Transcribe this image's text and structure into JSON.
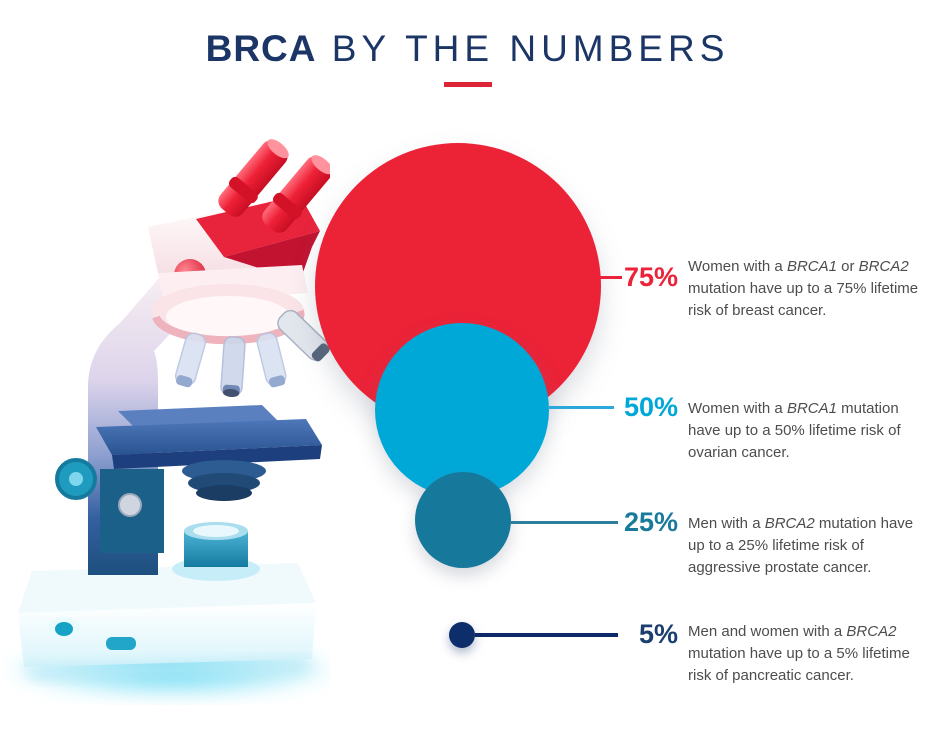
{
  "title": {
    "bold": "BRCA",
    "light": " BY THE NUMBERS"
  },
  "accent": {
    "bar_color": "#DC2638",
    "title_color": "#1B3566"
  },
  "rows": [
    {
      "pct": "75%",
      "label_color": "#EC2338",
      "line_color": "#EC2338",
      "bubble_color": "#EC2237",
      "desc": [
        {
          "t": "Women with a "
        },
        {
          "t": "BRCA1",
          "i": true
        },
        {
          "t": " or "
        },
        {
          "t": "BRCA2",
          "i": true
        },
        {
          "t": " mutation have up to a 75% lifetime risk of breast cancer."
        }
      ]
    },
    {
      "pct": "50%",
      "label_color": "#00A8D8",
      "line_color": "#2BA9DB",
      "bubble_color": "#00A8D8",
      "desc": [
        {
          "t": "Women with a "
        },
        {
          "t": "BRCA1",
          "i": true
        },
        {
          "t": " mutation have up to a 50% lifetime risk of ovarian cancer."
        }
      ]
    },
    {
      "pct": "25%",
      "label_color": "#1A7A9B",
      "line_color": "#2E7E9E",
      "bubble_color": "#16789A",
      "desc": [
        {
          "t": "Men with a "
        },
        {
          "t": "BRCA2",
          "i": true
        },
        {
          "t": " mutation have up to a 25% lifetime risk of aggressive prostate cancer."
        }
      ]
    },
    {
      "pct": "5%",
      "label_color": "#1C3E6E",
      "line_color": "#0D2A66",
      "bubble_color": "#0D2D6B",
      "desc": [
        {
          "t": "Men and women with a "
        },
        {
          "t": "BRCA2",
          "i": true
        },
        {
          "t": " mutation have up to a 5% lifetime risk of pancreatic cancer."
        }
      ]
    }
  ],
  "chart_data": {
    "type": "bubble",
    "title": "BRCA BY THE NUMBERS",
    "labels": [
      "75%",
      "50%",
      "25%",
      "5%"
    ],
    "values": [
      75,
      50,
      25,
      5
    ],
    "unit": "% lifetime risk",
    "categories": [
      "Breast cancer — women with a BRCA1 or BRCA2 mutation",
      "Ovarian cancer — women with a BRCA1 mutation",
      "Aggressive prostate cancer — men with a BRCA2 mutation",
      "Pancreatic cancer — men and women with a BRCA2 mutation"
    ],
    "colors": [
      "#EC2237",
      "#00A8D8",
      "#16789A",
      "#0D2D6B"
    ],
    "legend_position": "right",
    "layout": "circles sized by value, stacked vertically with leader lines to labels"
  },
  "illustration": {
    "name": "microscope"
  }
}
